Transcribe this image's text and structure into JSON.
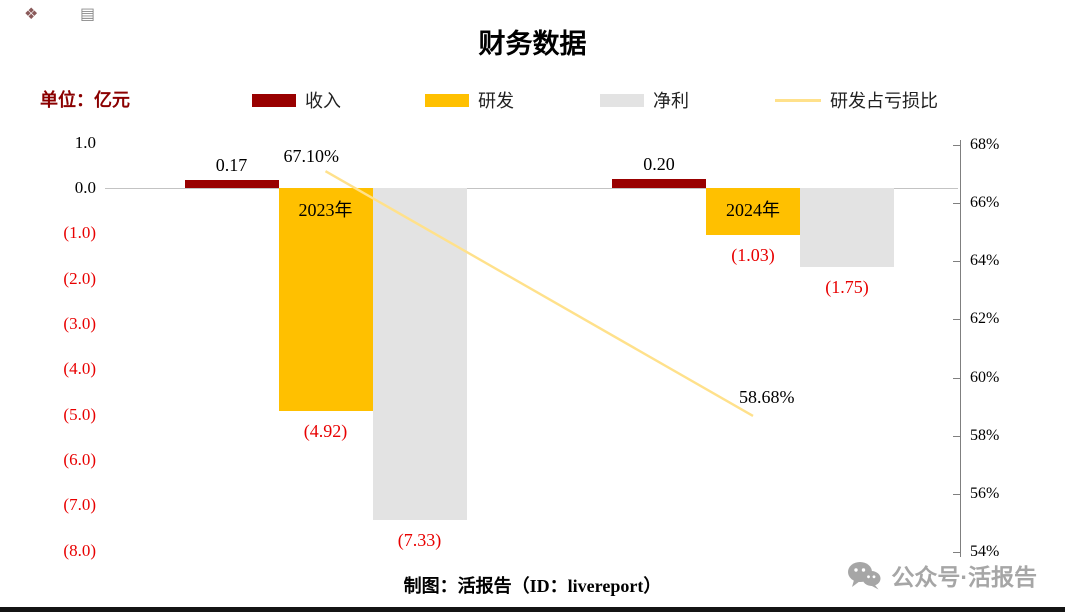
{
  "decor": {
    "icon1": "❖",
    "icon2": "▤"
  },
  "title": "财务数据",
  "unit_label": "单位：亿元",
  "legend": [
    {
      "label": "收入",
      "color": "#990000"
    },
    {
      "label": "研发",
      "color": "#ffc000"
    },
    {
      "label": "净利",
      "color": "#e3e3e3"
    },
    {
      "label": "研发占亏损比",
      "color": "#ffe18b"
    }
  ],
  "chart_data": {
    "type": "bar",
    "categories": [
      "2023年",
      "2024年"
    ],
    "series": [
      {
        "key": "revenue",
        "name": "收入",
        "color": "#990000",
        "values": [
          0.17,
          0.2
        ],
        "labels": [
          "0.17",
          "0.20"
        ]
      },
      {
        "key": "rd",
        "name": "研发",
        "color": "#ffc000",
        "values": [
          -4.92,
          -1.03
        ],
        "labels": [
          "(4.92)",
          "(1.03)"
        ]
      },
      {
        "key": "net",
        "name": "净利",
        "color": "#e3e3e3",
        "values": [
          -7.33,
          -1.75
        ],
        "labels": [
          "(7.33)",
          "(1.75)"
        ]
      },
      {
        "key": "ratio",
        "name": "研发占亏损比",
        "type": "line",
        "axis": "right",
        "color": "#ffe18b",
        "values": [
          67.1,
          58.68
        ],
        "labels": [
          "67.10%",
          "58.68%"
        ]
      }
    ],
    "left_axis": {
      "ticks": [
        "1.0",
        "0.0",
        "(1.0)",
        "(2.0)",
        "(3.0)",
        "(4.0)",
        "(5.0)",
        "(6.0)",
        "(7.0)",
        "(8.0)"
      ],
      "min": -8,
      "max": 1,
      "negative_style": "parentheses-red"
    },
    "right_axis": {
      "ticks": [
        "68%",
        "66%",
        "64%",
        "62%",
        "60%",
        "58%",
        "56%",
        "54%"
      ],
      "min": 54,
      "max": 68,
      "unit": "%"
    },
    "legend_position": "top",
    "grid": false
  },
  "footer": {
    "credit": "制图：活报告（ID：livereport）",
    "wechat_icon": "wechat-logo",
    "wechat_label": "公众号·活报告"
  }
}
